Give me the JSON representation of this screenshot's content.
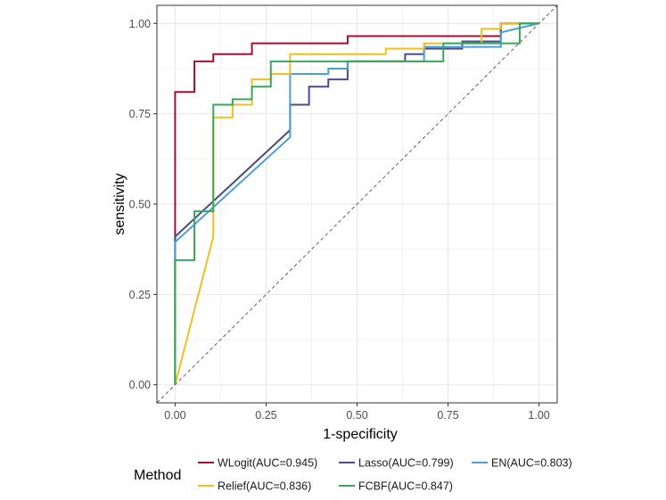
{
  "chart_data": {
    "type": "line",
    "xlabel": "1-specificity",
    "ylabel": "sensitivity",
    "xlim": [
      -0.05,
      1.05
    ],
    "ylim": [
      -0.05,
      1.05
    ],
    "xticks": [
      0,
      0.25,
      0.5,
      0.75,
      1
    ],
    "xtick_labels": [
      "0.00",
      "0.25",
      "0.50",
      "0.75",
      "1.00"
    ],
    "yticks": [
      0,
      0.25,
      0.5,
      0.75,
      1
    ],
    "ytick_labels": [
      "0.00",
      "0.25",
      "0.50",
      "0.75",
      "1.00"
    ],
    "grid": true,
    "legend": {
      "title": "Method",
      "placement": "bottom"
    },
    "reference_line": {
      "x": [
        0,
        1
      ],
      "y": [
        0,
        1
      ],
      "style": "dashed"
    },
    "series": [
      {
        "name": "WLogit(AUC=0.945)",
        "color": "#a50f2d",
        "x": [
          0,
          0,
          0,
          0.053,
          0.053,
          0.105,
          0.105,
          0.211,
          0.211,
          0.474,
          0.474,
          0.895,
          0.895,
          1
        ],
        "y": [
          0,
          0.41,
          0.81,
          0.81,
          0.895,
          0.895,
          0.915,
          0.915,
          0.945,
          0.945,
          0.965,
          0.965,
          1,
          1
        ]
      },
      {
        "name": "Lasso(AUC=0.799)",
        "color": "#4a4a8c",
        "x": [
          0,
          0,
          0.316,
          0.316,
          0.368,
          0.368,
          0.421,
          0.421,
          0.474,
          0.474,
          0.632,
          0.632,
          0.684,
          0.684,
          0.789,
          0.789,
          0.895,
          0.895,
          1
        ],
        "y": [
          0,
          0.41,
          0.705,
          0.775,
          0.775,
          0.825,
          0.825,
          0.845,
          0.845,
          0.895,
          0.895,
          0.915,
          0.915,
          0.93,
          0.93,
          0.95,
          0.95,
          1,
          1
        ]
      },
      {
        "name": "EN(AUC=0.803)",
        "color": "#4a9fd8",
        "x": [
          0,
          0,
          0.316,
          0.316,
          0.421,
          0.421,
          0.474,
          0.474,
          0.684,
          0.684,
          0.895,
          0.895,
          1
        ],
        "y": [
          0,
          0.395,
          0.685,
          0.86,
          0.86,
          0.875,
          0.875,
          0.895,
          0.895,
          0.935,
          0.935,
          0.975,
          1
        ]
      },
      {
        "name": "Relief(AUC=0.836)",
        "color": "#f0c020",
        "x": [
          0,
          0.105,
          0.105,
          0.158,
          0.158,
          0.211,
          0.211,
          0.263,
          0.263,
          0.316,
          0.316,
          0.579,
          0.579,
          0.684,
          0.684,
          0.842,
          0.842,
          0.895,
          0.895,
          1
        ],
        "y": [
          0,
          0.41,
          0.74,
          0.74,
          0.775,
          0.775,
          0.845,
          0.845,
          0.86,
          0.86,
          0.915,
          0.915,
          0.93,
          0.93,
          0.945,
          0.945,
          0.985,
          0.985,
          1,
          1
        ]
      },
      {
        "name": "FCBF(AUC=0.847)",
        "color": "#3aa65a",
        "x": [
          0,
          0,
          0.053,
          0.053,
          0.105,
          0.105,
          0.158,
          0.158,
          0.211,
          0.211,
          0.263,
          0.263,
          0.737,
          0.737,
          0.947,
          0.947,
          1
        ],
        "y": [
          0,
          0.345,
          0.345,
          0.48,
          0.48,
          0.775,
          0.775,
          0.79,
          0.79,
          0.825,
          0.825,
          0.895,
          0.895,
          0.945,
          0.945,
          1,
          1
        ]
      }
    ]
  }
}
